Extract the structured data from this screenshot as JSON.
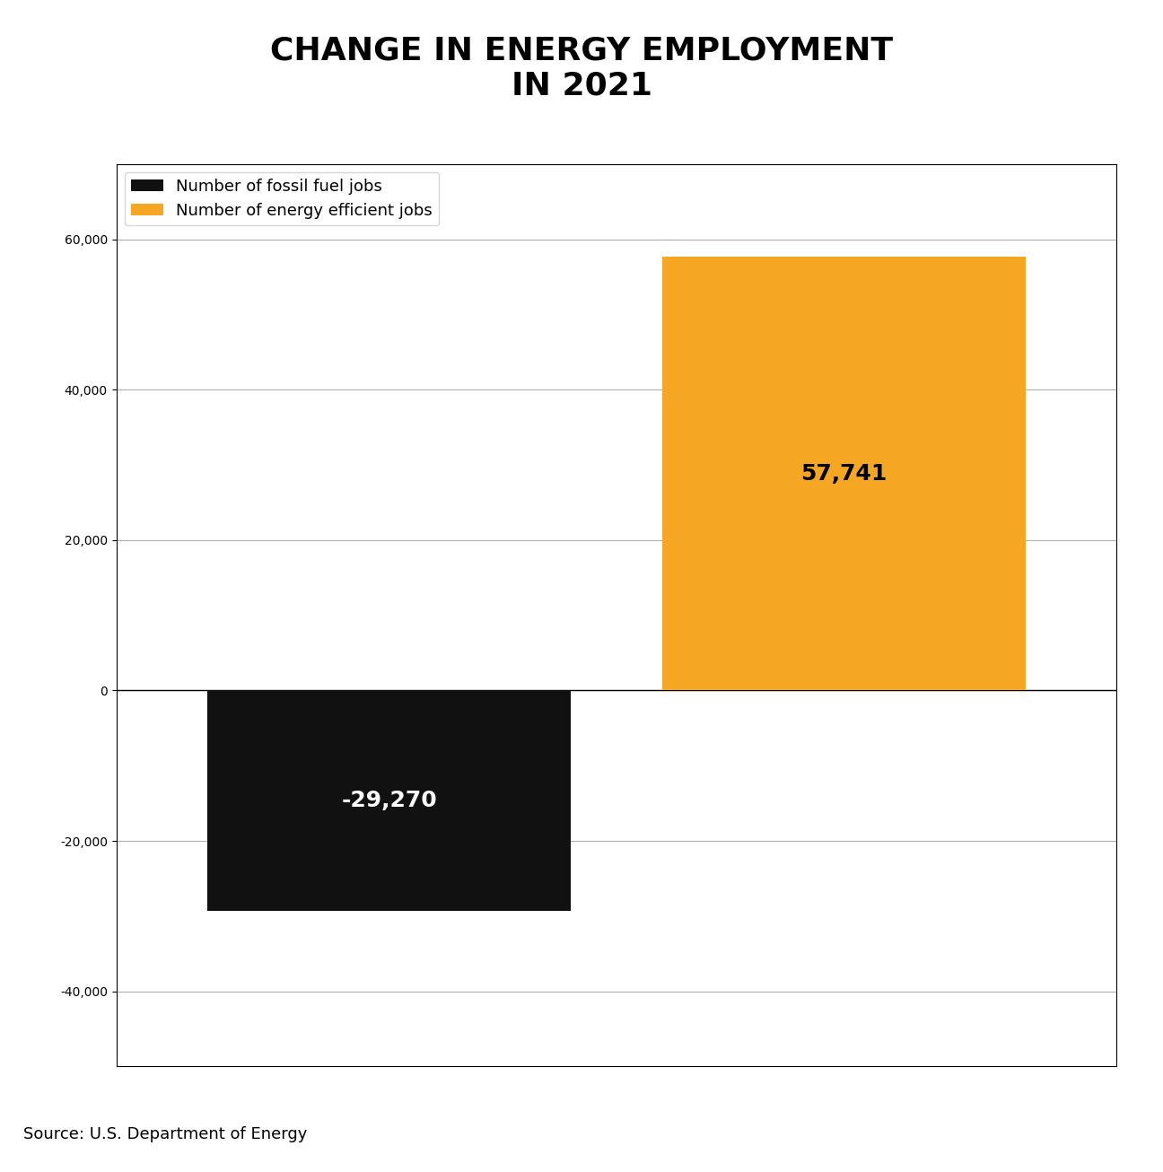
{
  "chart_data": {
    "type": "bar",
    "title": "CHANGE IN ENERGY EMPLOYMENT\nIN 2021",
    "source": "Source: U.S. Department of Energy",
    "categories": [
      null,
      null
    ],
    "series": [
      {
        "name": "Number of fossil fuel jobs",
        "color": "#111111",
        "values": [
          -29270,
          null
        ],
        "value_labels": [
          "-29,270",
          null
        ]
      },
      {
        "name": "Number of energy efficient jobs",
        "color": "#F5A623",
        "values": [
          null,
          57741
        ],
        "value_labels": [
          null,
          "57,741"
        ]
      }
    ],
    "ylim": [
      -50000,
      70000
    ],
    "yticks": [
      {
        "value": -40000,
        "label": "-40,000"
      },
      {
        "value": -20000,
        "label": "-20,000"
      },
      0,
      {
        "value": 20000,
        "label": "20,000"
      },
      {
        "value": 40000,
        "label": "40,000"
      },
      {
        "value": 60000,
        "label": "60,000"
      }
    ],
    "grid": true,
    "legend": "upper left",
    "data_labels": true,
    "tick_labels": "y"
  }
}
